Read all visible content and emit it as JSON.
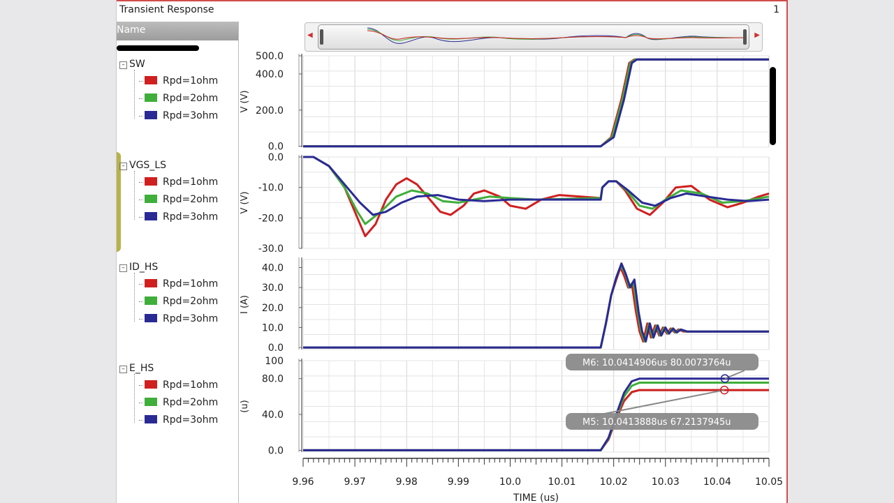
{
  "window": {
    "title": "Transient Response",
    "panel_number": "1"
  },
  "sidebar": {
    "header": "Name",
    "groups": [
      {
        "name": "SW",
        "items": [
          "Rpd=1ohm",
          "Rpd=2ohm",
          "Rpd=3ohm"
        ]
      },
      {
        "name": "VGS_LS",
        "items": [
          "Rpd=1ohm",
          "Rpd=2ohm",
          "Rpd=3ohm"
        ]
      },
      {
        "name": "ID_HS",
        "items": [
          "Rpd=1ohm",
          "Rpd=2ohm",
          "Rpd=3ohm"
        ]
      },
      {
        "name": "E_HS",
        "items": [
          "Rpd=1ohm",
          "Rpd=2ohm",
          "Rpd=3ohm"
        ]
      }
    ]
  },
  "colors": {
    "red": "#d01f1f",
    "green": "#3fae3a",
    "blue": "#2a2a95",
    "grid": "#d9d9d9"
  },
  "chart_data": {
    "type": "line",
    "xlabel": "TIME (us)",
    "xlim": [
      9.96,
      10.05
    ],
    "x_ticks": [
      "9.96",
      "9.97",
      "9.98",
      "9.99",
      "10.0",
      "10.01",
      "10.02",
      "10.03",
      "10.04",
      "10.05"
    ],
    "series_names": [
      "Rpd=1ohm",
      "Rpd=2ohm",
      "Rpd=3ohm"
    ],
    "series_colors": [
      "#d01f1f",
      "#3fae3a",
      "#2a2a95"
    ],
    "markers": [
      {
        "label": "M6: 10.0414906us 80.0073764u",
        "x": 10.0414906,
        "y": 80.0073764,
        "panel": "E_HS"
      },
      {
        "label": "M5: 10.0413888us 67.2137945u",
        "x": 10.0413888,
        "y": 67.2137945,
        "panel": "E_HS"
      }
    ],
    "panels": [
      {
        "name": "SW",
        "ylabel": "V (V)",
        "ylim": [
          -5,
          500
        ],
        "y_ticks": [
          {
            "v": 500,
            "t": "500.0"
          },
          {
            "v": 400,
            "t": "400.0"
          },
          {
            "v": 200,
            "t": "200.0"
          },
          {
            "v": 0,
            "t": "0.0"
          }
        ],
        "series": [
          {
            "name": "Rpd=1ohm",
            "x": [
              9.96,
              10.0175,
              10.0195,
              10.0215,
              10.023,
              10.024,
              10.05
            ],
            "y": [
              0,
              0,
              50,
              260,
              460,
              480,
              480
            ]
          },
          {
            "name": "Rpd=2ohm",
            "x": [
              9.96,
              10.0175,
              10.0197,
              10.0217,
              10.0232,
              10.0242,
              10.05
            ],
            "y": [
              0,
              0,
              50,
              260,
              460,
              480,
              480
            ]
          },
          {
            "name": "Rpd=3ohm",
            "x": [
              9.96,
              10.0175,
              10.02,
              10.022,
              10.0235,
              10.0245,
              10.05
            ],
            "y": [
              0,
              0,
              50,
              260,
              460,
              480,
              480
            ]
          }
        ]
      },
      {
        "name": "VGS_LS",
        "ylabel": "V (V)",
        "ylim": [
          -30,
          0
        ],
        "y_ticks": [
          {
            "v": 0,
            "t": "0.0"
          },
          {
            "v": -10,
            "t": "-10.0"
          },
          {
            "v": -20,
            "t": "-20.0"
          },
          {
            "v": -30,
            "t": "-30.0"
          }
        ],
        "series": [
          {
            "name": "Rpd=1ohm",
            "x": [
              9.96,
              9.962,
              9.965,
              9.968,
              9.9705,
              9.972,
              9.974,
              9.976,
              9.978,
              9.98,
              9.982,
              9.9845,
              9.9865,
              9.9885,
              9.991,
              9.993,
              9.995,
              9.998,
              10.0,
              10.003,
              10.006,
              10.0095,
              10.0175,
              10.0178,
              10.019,
              10.0205,
              10.0222,
              10.0245,
              10.027,
              10.0295,
              10.032,
              10.035,
              10.0385,
              10.042,
              10.045,
              10.048,
              10.05
            ],
            "y": [
              0,
              0,
              -3,
              -10,
              -20,
              -26,
              -22,
              -14,
              -9,
              -7,
              -9,
              -14,
              -18,
              -19,
              -16,
              -12,
              -11,
              -13,
              -16,
              -17,
              -14,
              -12.5,
              -13.5,
              -10,
              -8,
              -8,
              -11,
              -17,
              -19,
              -15,
              -10,
              -9.5,
              -14,
              -16.5,
              -15,
              -13,
              -12
            ]
          },
          {
            "name": "Rpd=2ohm",
            "x": [
              9.96,
              9.962,
              9.965,
              9.968,
              9.9705,
              9.972,
              9.975,
              9.978,
              9.981,
              9.984,
              9.987,
              9.99,
              9.993,
              9.996,
              10.0,
              10.005,
              10.0175,
              10.0178,
              10.019,
              10.0205,
              10.0225,
              10.025,
              10.0275,
              10.03,
              10.033,
              10.037,
              10.041,
              10.045,
              10.05
            ],
            "y": [
              0,
              0,
              -3,
              -10,
              -18,
              -22,
              -18,
              -13,
              -11,
              -12,
              -14.5,
              -15,
              -14,
              -13,
              -13.5,
              -14,
              -13.5,
              -10,
              -8,
              -8,
              -11,
              -16,
              -17,
              -14,
              -11,
              -12,
              -15,
              -14.5,
              -13
            ]
          },
          {
            "name": "Rpd=3ohm",
            "x": [
              9.96,
              9.962,
              9.965,
              9.968,
              9.971,
              9.9735,
              9.976,
              9.979,
              9.982,
              9.986,
              9.99,
              9.995,
              10.0,
              10.005,
              10.0175,
              10.0178,
              10.019,
              10.0205,
              10.0228,
              10.0255,
              10.028,
              10.031,
              10.034,
              10.038,
              10.042,
              10.046,
              10.05
            ],
            "y": [
              0,
              0,
              -3,
              -9,
              -15,
              -19,
              -18,
              -15,
              -13,
              -12.5,
              -14,
              -14.5,
              -14,
              -14,
              -14,
              -10,
              -8,
              -8,
              -11,
              -15,
              -16,
              -13.5,
              -12,
              -13,
              -14,
              -14.5,
              -14
            ]
          }
        ]
      },
      {
        "name": "ID_HS",
        "ylabel": "I (A)",
        "ylim": [
          -1,
          44
        ],
        "y_ticks": [
          {
            "v": 40,
            "t": "40.0"
          },
          {
            "v": 30,
            "t": "30.0"
          },
          {
            "v": 20,
            "t": "20.0"
          },
          {
            "v": 10,
            "t": "10.0"
          },
          {
            "v": 0,
            "t": "0.0"
          }
        ],
        "series": [
          {
            "name": "Rpd=1ohm",
            "x": [
              9.96,
              10.0175,
              10.0185,
              10.0195,
              10.0205,
              10.0213,
              10.022,
              10.0228,
              10.0235,
              10.0243,
              10.025,
              10.0257,
              10.0265,
              10.0272,
              10.028,
              10.0288,
              10.0295,
              10.0303,
              10.031,
              10.0318,
              10.0325,
              10.0335,
              10.035,
              10.05
            ],
            "y": [
              0,
              0,
              12,
              26,
              34,
              40,
              36,
              30,
              32,
              18,
              8,
              3,
              12,
              5,
              11,
              6,
              10,
              7,
              9.5,
              7.5,
              9,
              8,
              8,
              8
            ]
          },
          {
            "name": "Rpd=2ohm",
            "x": [
              9.96,
              10.0175,
              10.0185,
              10.0195,
              10.0205,
              10.0214,
              10.0222,
              10.023,
              10.0238,
              10.0246,
              10.0253,
              10.026,
              10.0268,
              10.0275,
              10.0283,
              10.029,
              10.0298,
              10.0305,
              10.0313,
              10.032,
              10.0328,
              10.034,
              10.036,
              10.05
            ],
            "y": [
              0,
              0,
              12,
              26,
              35,
              41,
              37,
              30,
              33,
              18,
              8,
              3,
              12,
              5,
              11,
              6,
              10,
              7,
              9.5,
              7.5,
              9,
              8,
              8,
              8
            ]
          },
          {
            "name": "Rpd=3ohm",
            "x": [
              9.96,
              10.0175,
              10.0185,
              10.0195,
              10.0205,
              10.0215,
              10.0223,
              10.0232,
              10.024,
              10.0248,
              10.0255,
              10.0262,
              10.027,
              10.0277,
              10.0285,
              10.0292,
              10.03,
              10.0307,
              10.0315,
              10.0322,
              10.033,
              10.0342,
              10.036,
              10.05
            ],
            "y": [
              0,
              0,
              12,
              26,
              35,
              42,
              37,
              30,
              34,
              18,
              8,
              3,
              12,
              5,
              11,
              6,
              10,
              7,
              9.5,
              7.5,
              9,
              8,
              8,
              8
            ]
          }
        ]
      },
      {
        "name": "E_HS",
        "ylabel": "(u)",
        "ylim": [
          -2,
          100
        ],
        "y_ticks": [
          {
            "v": 100,
            "t": "100"
          },
          {
            "v": 80,
            "t": "80.0"
          },
          {
            "v": 40,
            "t": "40.0"
          },
          {
            "v": 0,
            "t": "0.0"
          }
        ],
        "series": [
          {
            "name": "Rpd=1ohm",
            "x": [
              9.96,
              10.0175,
              10.019,
              10.0205,
              10.022,
              10.0235,
              10.025,
              10.05
            ],
            "y": [
              0,
              0,
              12,
              35,
              55,
              65,
              67.2,
              67.2
            ]
          },
          {
            "name": "Rpd=2ohm",
            "x": [
              9.96,
              10.0175,
              10.019,
              10.0205,
              10.022,
              10.0235,
              10.025,
              10.05
            ],
            "y": [
              0,
              0,
              13,
              38,
              60,
              72,
              75.5,
              75.5
            ]
          },
          {
            "name": "Rpd=3ohm",
            "x": [
              9.96,
              10.0175,
              10.019,
              10.0205,
              10.022,
              10.0235,
              10.025,
              10.05
            ],
            "y": [
              0,
              0,
              14,
              40,
              64,
              77,
              80,
              80
            ]
          }
        ]
      }
    ]
  }
}
